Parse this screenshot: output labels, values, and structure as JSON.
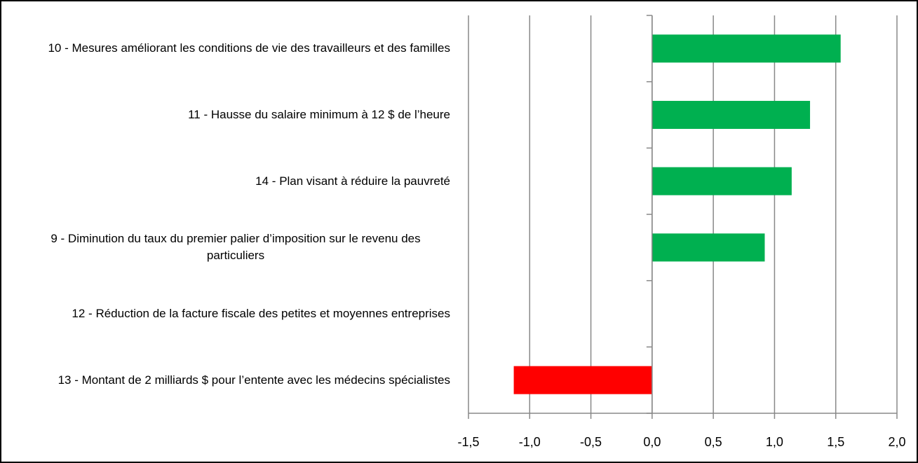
{
  "chart_data": {
    "type": "bar",
    "orientation": "horizontal",
    "categories": [
      "10 - Mesures améliorant les conditions de vie des travailleurs et des familles",
      "11 - Hausse du salaire minimum à 12 $ de l’heure",
      "14 - Plan visant à réduire la pauvreté",
      "9 - Diminution du taux du premier palier d’imposition sur le revenu des particuliers",
      "12 - Réduction de la facture fiscale des petites et moyennes entreprises",
      "13 - Montant de 2 milliards $ pour l’entente avec les médecins spécialistes"
    ],
    "values": [
      1.54,
      1.29,
      1.14,
      0.92,
      0,
      -1.13
    ],
    "colors": [
      "#00b050",
      "#00b050",
      "#00b050",
      "#00b050",
      "#00b050",
      "#ff0000"
    ],
    "xlim": [
      -1.5,
      2.0
    ],
    "xticks": [
      {
        "value": -1.5,
        "label": "-1,5"
      },
      {
        "value": -1.0,
        "label": "-1,0"
      },
      {
        "value": -0.5,
        "label": "-0,5"
      },
      {
        "value": 0,
        "label": "0,0"
      },
      {
        "value": 0.5,
        "label": "0,5"
      },
      {
        "value": 1.0,
        "label": "1,0"
      },
      {
        "value": 1.5,
        "label": "1,5"
      },
      {
        "value": 2.0,
        "label": "2,0"
      }
    ],
    "grid": true
  }
}
